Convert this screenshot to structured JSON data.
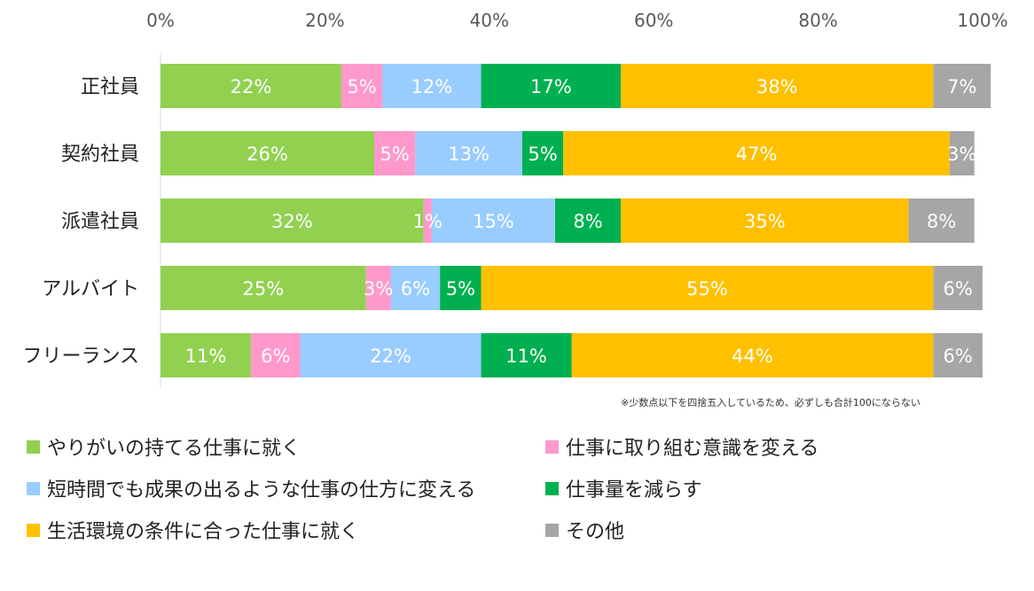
{
  "chart_data": {
    "type": "bar",
    "orientation": "horizontal",
    "stacked": true,
    "categories": [
      "正社員",
      "契約社員",
      "派遣社員",
      "アルバイト",
      "フリーランス"
    ],
    "x_ticks": [
      "0%",
      "20%",
      "40%",
      "60%",
      "80%",
      "100%"
    ],
    "xlim": [
      0,
      100
    ],
    "series": [
      {
        "name": "やりがいの持てる仕事に就く",
        "color": "#92d050",
        "values": [
          22,
          26,
          32,
          25,
          11
        ]
      },
      {
        "name": "仕事に取り組む意識を変える",
        "color": "#ff99cc",
        "values": [
          5,
          5,
          1,
          3,
          6
        ]
      },
      {
        "name": "短時間でも成果の出るような仕事の仕方に変える",
        "color": "#99ccff",
        "values": [
          12,
          13,
          15,
          6,
          22
        ]
      },
      {
        "name": "仕事量を減らす",
        "color": "#00b050",
        "values": [
          17,
          5,
          8,
          5,
          11
        ]
      },
      {
        "name": "生活環境の条件に合った仕事に就く",
        "color": "#ffc000",
        "values": [
          38,
          47,
          35,
          55,
          44
        ]
      },
      {
        "name": "その他",
        "color": "#a6a6a6",
        "values": [
          7,
          3,
          8,
          6,
          6
        ]
      }
    ],
    "note": "※少数点以下を四捨五入しているため、必ずしも合計100にならない",
    "legend_position": "bottom"
  }
}
